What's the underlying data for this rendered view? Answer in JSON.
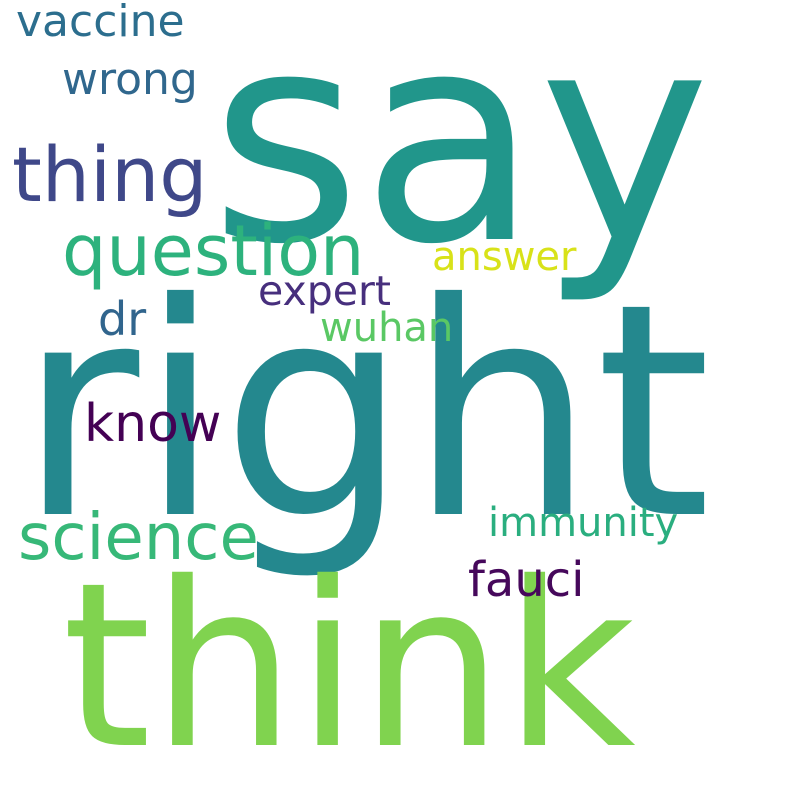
{
  "words": [
    {
      "text": "say",
      "color": "#21968b"
    },
    {
      "text": "right",
      "color": "#24888e"
    },
    {
      "text": "think",
      "color": "#80d34f"
    },
    {
      "text": "thing",
      "color": "#3f4889"
    },
    {
      "text": "question",
      "color": "#2db27d"
    },
    {
      "text": "vaccine",
      "color": "#2c6e8e"
    },
    {
      "text": "wrong",
      "color": "#30678d"
    },
    {
      "text": "answer",
      "color": "#d8e219"
    },
    {
      "text": "expert",
      "color": "#472f7d"
    },
    {
      "text": "dr",
      "color": "#31658d"
    },
    {
      "text": "wuhan",
      "color": "#5ac864"
    },
    {
      "text": "know",
      "color": "#440154"
    },
    {
      "text": "science",
      "color": "#37b878"
    },
    {
      "text": "immunity",
      "color": "#2aae7f"
    },
    {
      "text": "fauci",
      "color": "#46085b"
    }
  ]
}
